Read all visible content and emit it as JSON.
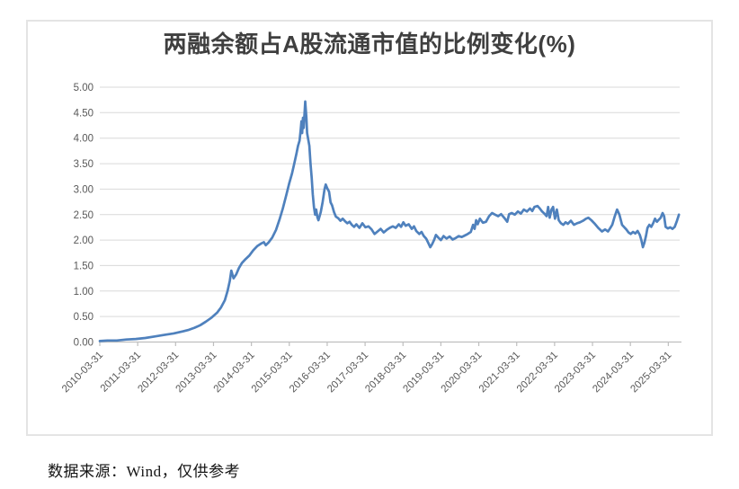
{
  "chart_data": {
    "type": "line",
    "title": "两融余额占A股流通市值的比例变化(%)",
    "xlabel": "",
    "ylabel": "",
    "grid": "horizontal",
    "legend": "none",
    "line_color": "#4F81BD",
    "gridline_color": "#d9d9d9",
    "axis_color": "#bfbfbf",
    "tick_label_color": "#595959",
    "ylim": [
      0,
      5
    ],
    "ytick_step": 0.5,
    "y_tick_labels": [
      "0.00",
      "0.50",
      "1.00",
      "1.50",
      "2.00",
      "2.50",
      "3.00",
      "3.50",
      "4.00",
      "4.50",
      "5.00"
    ],
    "x_tick_labels": [
      "2010-03-31",
      "2011-03-31",
      "2012-03-31",
      "2013-03-31",
      "2014-03-31",
      "2015-03-31",
      "2016-03-31",
      "2017-03-31",
      "2018-03-31",
      "2019-03-31",
      "2020-03-31",
      "2021-03-31",
      "2022-03-31",
      "2023-03-31",
      "2024-03-31",
      "2025-03-31"
    ],
    "x_range_years": [
      2010.25,
      2025.55
    ],
    "series": [
      {
        "points": [
          [
            2010.25,
            0.02
          ],
          [
            2010.45,
            0.03
          ],
          [
            2010.7,
            0.03
          ],
          [
            2010.95,
            0.05
          ],
          [
            2011.2,
            0.06
          ],
          [
            2011.45,
            0.08
          ],
          [
            2011.7,
            0.11
          ],
          [
            2011.95,
            0.14
          ],
          [
            2012.2,
            0.17
          ],
          [
            2012.45,
            0.21
          ],
          [
            2012.6,
            0.24
          ],
          [
            2012.75,
            0.28
          ],
          [
            2012.9,
            0.33
          ],
          [
            2013.05,
            0.4
          ],
          [
            2013.2,
            0.48
          ],
          [
            2013.35,
            0.58
          ],
          [
            2013.45,
            0.68
          ],
          [
            2013.55,
            0.82
          ],
          [
            2013.62,
            1.0
          ],
          [
            2013.68,
            1.2
          ],
          [
            2013.72,
            1.4
          ],
          [
            2013.78,
            1.25
          ],
          [
            2013.85,
            1.33
          ],
          [
            2013.92,
            1.45
          ],
          [
            2014.0,
            1.55
          ],
          [
            2014.1,
            1.63
          ],
          [
            2014.2,
            1.7
          ],
          [
            2014.3,
            1.8
          ],
          [
            2014.4,
            1.88
          ],
          [
            2014.5,
            1.93
          ],
          [
            2014.58,
            1.96
          ],
          [
            2014.63,
            1.9
          ],
          [
            2014.7,
            1.95
          ],
          [
            2014.8,
            2.05
          ],
          [
            2014.9,
            2.2
          ],
          [
            2015.0,
            2.42
          ],
          [
            2015.08,
            2.62
          ],
          [
            2015.17,
            2.88
          ],
          [
            2015.25,
            3.12
          ],
          [
            2015.32,
            3.3
          ],
          [
            2015.38,
            3.5
          ],
          [
            2015.44,
            3.7
          ],
          [
            2015.48,
            3.85
          ],
          [
            2015.52,
            3.95
          ],
          [
            2015.55,
            4.15
          ],
          [
            2015.57,
            4.33
          ],
          [
            2015.59,
            4.1
          ],
          [
            2015.61,
            4.4
          ],
          [
            2015.63,
            4.2
          ],
          [
            2015.67,
            4.72
          ],
          [
            2015.7,
            4.4
          ],
          [
            2015.72,
            4.1
          ],
          [
            2015.75,
            3.97
          ],
          [
            2015.78,
            3.85
          ],
          [
            2015.81,
            3.5
          ],
          [
            2015.84,
            3.22
          ],
          [
            2015.87,
            2.9
          ],
          [
            2015.9,
            2.65
          ],
          [
            2015.93,
            2.5
          ],
          [
            2015.96,
            2.6
          ],
          [
            2015.99,
            2.45
          ],
          [
            2016.02,
            2.39
          ],
          [
            2016.08,
            2.55
          ],
          [
            2016.13,
            2.75
          ],
          [
            2016.18,
            3.0
          ],
          [
            2016.21,
            3.09
          ],
          [
            2016.25,
            3.02
          ],
          [
            2016.3,
            2.95
          ],
          [
            2016.34,
            2.74
          ],
          [
            2016.38,
            2.68
          ],
          [
            2016.43,
            2.55
          ],
          [
            2016.48,
            2.46
          ],
          [
            2016.54,
            2.43
          ],
          [
            2016.6,
            2.38
          ],
          [
            2016.66,
            2.42
          ],
          [
            2016.72,
            2.37
          ],
          [
            2016.78,
            2.33
          ],
          [
            2016.84,
            2.36
          ],
          [
            2016.9,
            2.3
          ],
          [
            2016.96,
            2.26
          ],
          [
            2017.02,
            2.31
          ],
          [
            2017.1,
            2.24
          ],
          [
            2017.18,
            2.33
          ],
          [
            2017.26,
            2.25
          ],
          [
            2017.34,
            2.27
          ],
          [
            2017.42,
            2.21
          ],
          [
            2017.5,
            2.12
          ],
          [
            2017.58,
            2.17
          ],
          [
            2017.66,
            2.22
          ],
          [
            2017.74,
            2.15
          ],
          [
            2017.82,
            2.2
          ],
          [
            2017.9,
            2.24
          ],
          [
            2017.98,
            2.27
          ],
          [
            2018.06,
            2.24
          ],
          [
            2018.14,
            2.31
          ],
          [
            2018.2,
            2.26
          ],
          [
            2018.26,
            2.35
          ],
          [
            2018.32,
            2.28
          ],
          [
            2018.4,
            2.31
          ],
          [
            2018.48,
            2.22
          ],
          [
            2018.54,
            2.27
          ],
          [
            2018.6,
            2.18
          ],
          [
            2018.68,
            2.12
          ],
          [
            2018.74,
            2.16
          ],
          [
            2018.8,
            2.08
          ],
          [
            2018.86,
            2.03
          ],
          [
            2018.92,
            1.94
          ],
          [
            2018.97,
            1.86
          ],
          [
            2019.02,
            1.92
          ],
          [
            2019.07,
            2.0
          ],
          [
            2019.12,
            2.1
          ],
          [
            2019.18,
            2.05
          ],
          [
            2019.25,
            2.0
          ],
          [
            2019.32,
            2.08
          ],
          [
            2019.4,
            2.03
          ],
          [
            2019.48,
            2.07
          ],
          [
            2019.56,
            2.01
          ],
          [
            2019.64,
            2.04
          ],
          [
            2019.72,
            2.08
          ],
          [
            2019.8,
            2.06
          ],
          [
            2019.88,
            2.09
          ],
          [
            2019.96,
            2.12
          ],
          [
            2020.04,
            2.16
          ],
          [
            2020.1,
            2.3
          ],
          [
            2020.14,
            2.22
          ],
          [
            2020.18,
            2.39
          ],
          [
            2020.22,
            2.31
          ],
          [
            2020.28,
            2.42
          ],
          [
            2020.36,
            2.34
          ],
          [
            2020.44,
            2.36
          ],
          [
            2020.52,
            2.47
          ],
          [
            2020.6,
            2.53
          ],
          [
            2020.68,
            2.5
          ],
          [
            2020.76,
            2.47
          ],
          [
            2020.84,
            2.51
          ],
          [
            2020.92,
            2.44
          ],
          [
            2021.0,
            2.36
          ],
          [
            2021.05,
            2.51
          ],
          [
            2021.12,
            2.53
          ],
          [
            2021.2,
            2.5
          ],
          [
            2021.28,
            2.56
          ],
          [
            2021.36,
            2.52
          ],
          [
            2021.44,
            2.6
          ],
          [
            2021.52,
            2.56
          ],
          [
            2021.6,
            2.62
          ],
          [
            2021.66,
            2.57
          ],
          [
            2021.72,
            2.65
          ],
          [
            2021.8,
            2.67
          ],
          [
            2021.86,
            2.62
          ],
          [
            2021.92,
            2.56
          ],
          [
            2021.98,
            2.52
          ],
          [
            2022.04,
            2.47
          ],
          [
            2022.08,
            2.65
          ],
          [
            2022.12,
            2.44
          ],
          [
            2022.17,
            2.6
          ],
          [
            2022.21,
            2.65
          ],
          [
            2022.26,
            2.42
          ],
          [
            2022.31,
            2.6
          ],
          [
            2022.36,
            2.39
          ],
          [
            2022.42,
            2.33
          ],
          [
            2022.48,
            2.3
          ],
          [
            2022.54,
            2.35
          ],
          [
            2022.6,
            2.32
          ],
          [
            2022.68,
            2.38
          ],
          [
            2022.76,
            2.3
          ],
          [
            2022.84,
            2.33
          ],
          [
            2022.92,
            2.35
          ],
          [
            2023.0,
            2.38
          ],
          [
            2023.08,
            2.42
          ],
          [
            2023.14,
            2.44
          ],
          [
            2023.22,
            2.39
          ],
          [
            2023.3,
            2.33
          ],
          [
            2023.4,
            2.24
          ],
          [
            2023.5,
            2.17
          ],
          [
            2023.58,
            2.21
          ],
          [
            2023.66,
            2.17
          ],
          [
            2023.72,
            2.24
          ],
          [
            2023.77,
            2.3
          ],
          [
            2023.83,
            2.45
          ],
          [
            2023.9,
            2.6
          ],
          [
            2023.96,
            2.5
          ],
          [
            2024.03,
            2.3
          ],
          [
            2024.08,
            2.26
          ],
          [
            2024.14,
            2.21
          ],
          [
            2024.2,
            2.15
          ],
          [
            2024.26,
            2.12
          ],
          [
            2024.32,
            2.16
          ],
          [
            2024.38,
            2.13
          ],
          [
            2024.44,
            2.18
          ],
          [
            2024.5,
            2.1
          ],
          [
            2024.54,
            2.0
          ],
          [
            2024.58,
            1.86
          ],
          [
            2024.62,
            1.95
          ],
          [
            2024.66,
            2.08
          ],
          [
            2024.7,
            2.24
          ],
          [
            2024.75,
            2.3
          ],
          [
            2024.8,
            2.26
          ],
          [
            2024.85,
            2.33
          ],
          [
            2024.9,
            2.42
          ],
          [
            2024.95,
            2.36
          ],
          [
            2025.0,
            2.4
          ],
          [
            2025.05,
            2.44
          ],
          [
            2025.1,
            2.53
          ],
          [
            2025.14,
            2.47
          ],
          [
            2025.18,
            2.26
          ],
          [
            2025.24,
            2.23
          ],
          [
            2025.3,
            2.25
          ],
          [
            2025.36,
            2.22
          ],
          [
            2025.42,
            2.26
          ],
          [
            2025.48,
            2.38
          ],
          [
            2025.53,
            2.5
          ]
        ]
      }
    ]
  },
  "source_note": "数据来源：Wind，仅供参考"
}
